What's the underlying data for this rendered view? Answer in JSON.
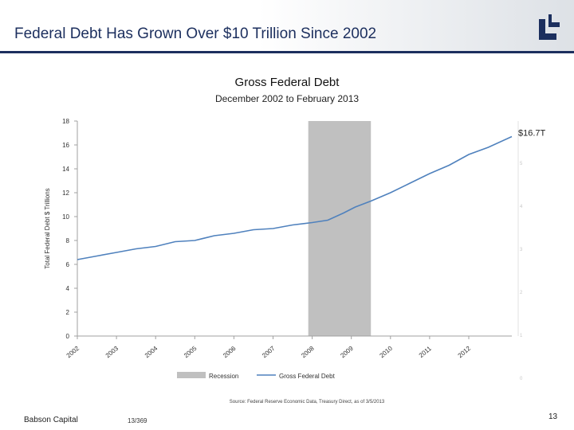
{
  "slide": {
    "title": "Federal Debt Has Grown Over $10 Trillion Since 2002",
    "footer_left": "Babson Capital",
    "footer_mid": "13/369",
    "page_number": "13",
    "logo_icon": "babson-logo-icon",
    "accent_color": "#1c2f5e"
  },
  "chart_data": {
    "type": "line",
    "title": "Gross Federal Debt",
    "subtitle": "December 2002  to February 2013",
    "ylabel": "Total Federal Debt $ Trillions",
    "ylim": [
      0,
      18
    ],
    "yticks": [
      0,
      2,
      4,
      6,
      8,
      10,
      12,
      14,
      16,
      18
    ],
    "xlim": [
      2002.0,
      2013.1
    ],
    "xtick_labels": [
      "2002",
      "2003",
      "2004",
      "2005",
      "2006",
      "2007",
      "2008",
      "2009",
      "2010",
      "2011",
      "2012"
    ],
    "right_ticks": [
      "5",
      "4",
      "3",
      "2",
      "1",
      "0"
    ],
    "recession": {
      "start": 2007.9,
      "end": 2009.5,
      "label": "Recession"
    },
    "series": [
      {
        "name": "Gross Federal Debt",
        "color": "#4f81bd",
        "x": [
          2002.0,
          2002.5,
          2003.0,
          2003.5,
          2004.0,
          2004.5,
          2005.0,
          2005.5,
          2006.0,
          2006.5,
          2007.0,
          2007.5,
          2008.0,
          2008.4,
          2008.8,
          2009.1,
          2009.5,
          2010.0,
          2010.5,
          2011.0,
          2011.5,
          2012.0,
          2012.5,
          2013.1
        ],
        "values": [
          6.4,
          6.7,
          7.0,
          7.3,
          7.5,
          7.9,
          8.0,
          8.4,
          8.6,
          8.9,
          9.0,
          9.3,
          9.5,
          9.7,
          10.3,
          10.8,
          11.3,
          12.0,
          12.8,
          13.6,
          14.3,
          15.2,
          15.8,
          16.7
        ]
      }
    ],
    "annotation": "$16.7T",
    "legend": [
      "Recession",
      "Gross Federal Debt"
    ],
    "legend_position": "bottom",
    "source": "Source: Federal Reserve Economic Data, Treasury Direct, as of 3/5/2013"
  }
}
